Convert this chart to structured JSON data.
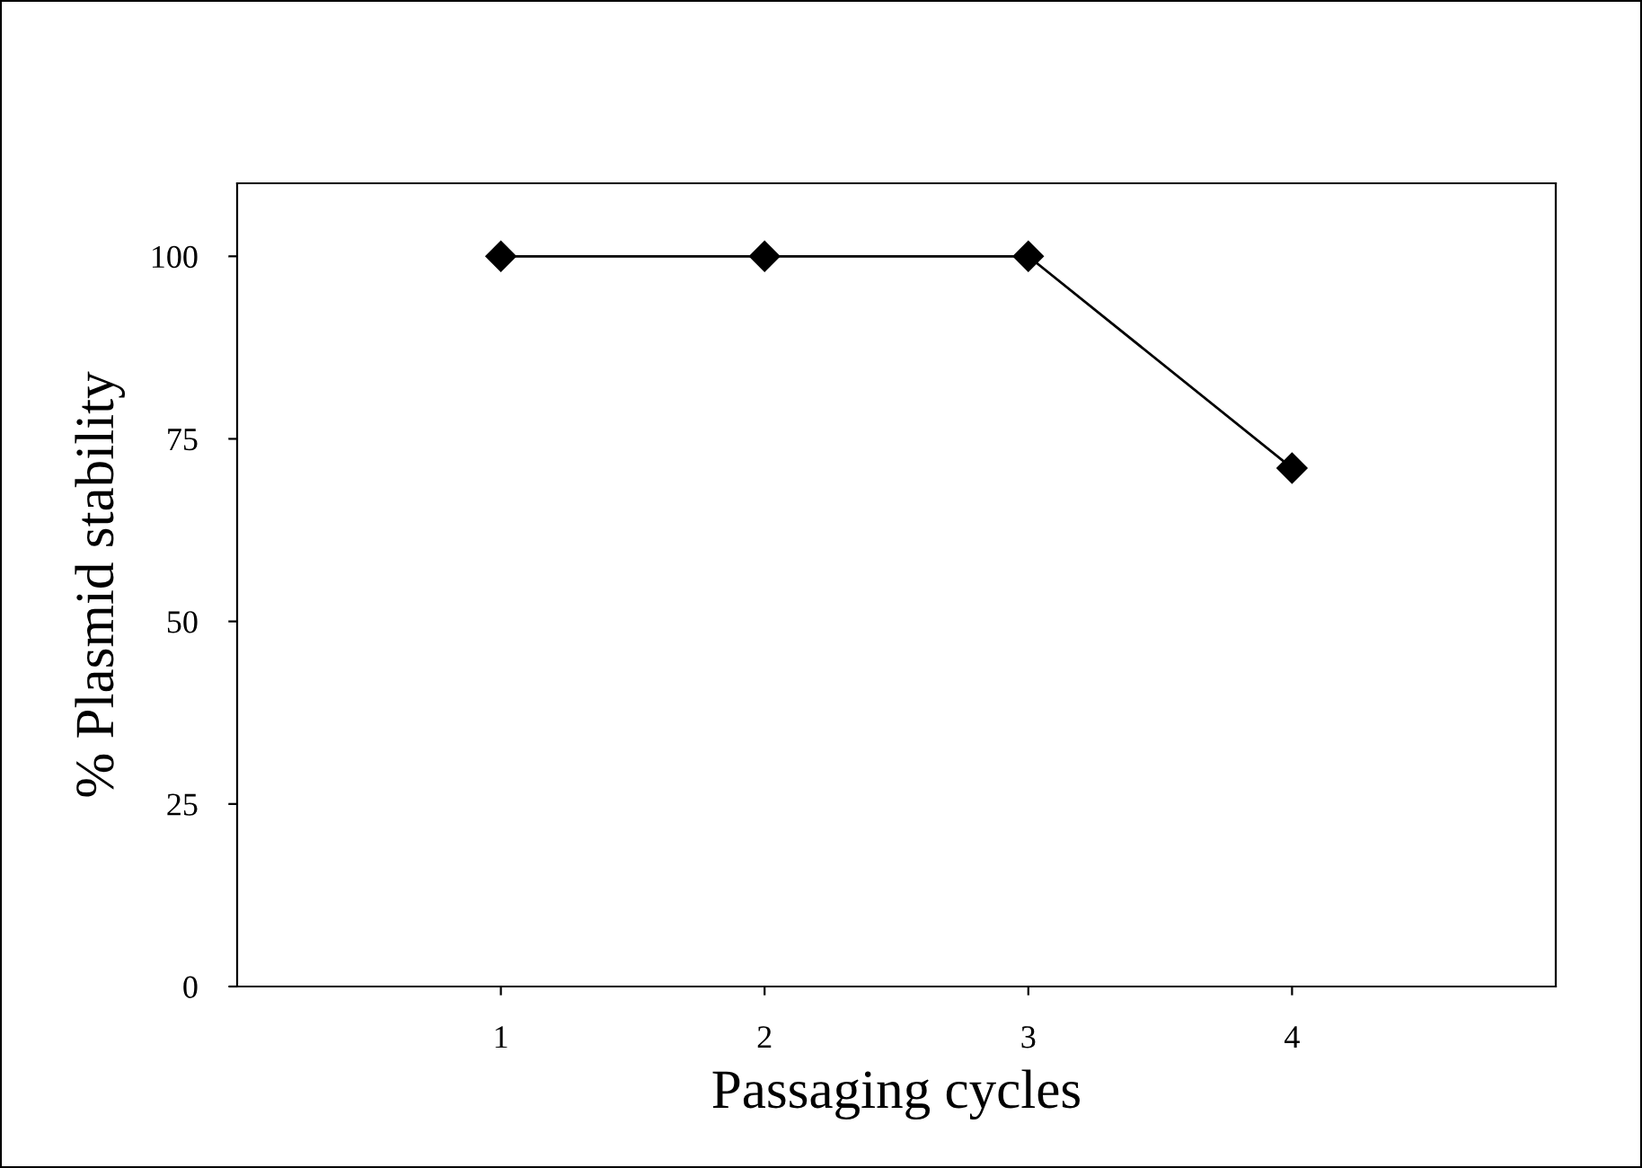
{
  "chart_data": {
    "type": "line",
    "xlabel": "Passaging cycles",
    "ylabel": "% Plasmid stability",
    "x": [
      1,
      2,
      3,
      4
    ],
    "series": [
      {
        "color": "#000000",
        "values": [
          100,
          100,
          100,
          71
        ]
      }
    ],
    "xlim": [
      0,
      5
    ],
    "xticks": [
      1,
      2,
      3,
      4
    ],
    "ylim": [
      0,
      110
    ],
    "yticks": [
      0,
      25,
      50,
      75,
      100
    ],
    "grid": false,
    "marker": "diamond",
    "line_style": "solid"
  }
}
